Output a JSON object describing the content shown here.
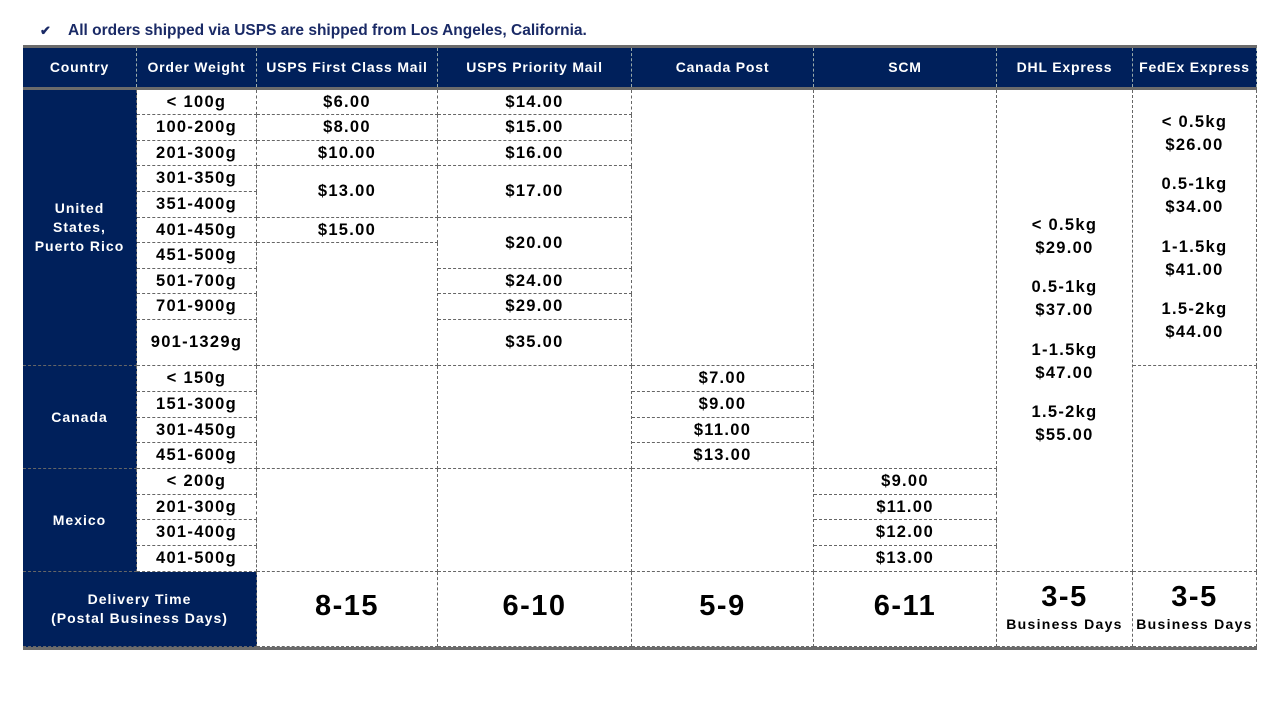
{
  "notice": {
    "icon": "check-icon",
    "text": "All orders shipped via USPS are shipped from Los Angeles, California."
  },
  "colors": {
    "header_bg": "#00205b",
    "header_text": "#ffffff"
  },
  "headers": [
    "Country",
    "Order Weight",
    "USPS First Class Mail",
    "USPS Priority Mail",
    "Canada Post",
    "SCM",
    "DHL Express",
    "FedEx Express"
  ],
  "us": {
    "country_lines": [
      "United",
      "States,",
      "Puerto Rico"
    ],
    "weights": [
      "< 100g",
      "100-200g",
      "201-300g",
      "301-350g",
      "351-400g",
      "401-450g",
      "451-500g",
      "501-700g",
      "701-900g",
      "901-1329g"
    ],
    "first_class": [
      "$6.00",
      "$8.00",
      "$10.00",
      "$13.00",
      "$15.00"
    ],
    "priority": [
      "$14.00",
      "$15.00",
      "$16.00",
      "$17.00",
      "$20.00",
      "$24.00",
      "$29.00",
      "$35.00"
    ],
    "fedex": [
      "< 0.5kg",
      "$26.00",
      "",
      "0.5-1kg",
      "$34.00",
      "",
      "1-1.5kg",
      "$41.00",
      "",
      "1.5-2kg",
      "$44.00"
    ]
  },
  "canada": {
    "country": "Canada",
    "weights": [
      "< 150g",
      "151-300g",
      "301-450g",
      "451-600g"
    ],
    "canada_post": [
      "$7.00",
      "$9.00",
      "$11.00",
      "$13.00"
    ]
  },
  "mexico": {
    "country": "Mexico",
    "weights": [
      "< 200g",
      "201-300g",
      "301-400g",
      "401-500g"
    ],
    "scm": [
      "$9.00",
      "$11.00",
      "$12.00",
      "$13.00"
    ]
  },
  "dhl": [
    "< 0.5kg",
    "$29.00",
    "",
    "0.5-1kg",
    "$37.00",
    "",
    "1-1.5kg",
    "$47.00",
    "",
    "1.5-2kg",
    "$55.00"
  ],
  "delivery": {
    "label_lines": [
      "Delivery Time",
      "(Postal Business Days)"
    ],
    "usps_first_class": "8-15",
    "usps_priority": "6-10",
    "canada_post": "5-9",
    "scm": "6-11",
    "dhl": "3-5",
    "fedex": "3-5",
    "business_days": "Business Days"
  }
}
